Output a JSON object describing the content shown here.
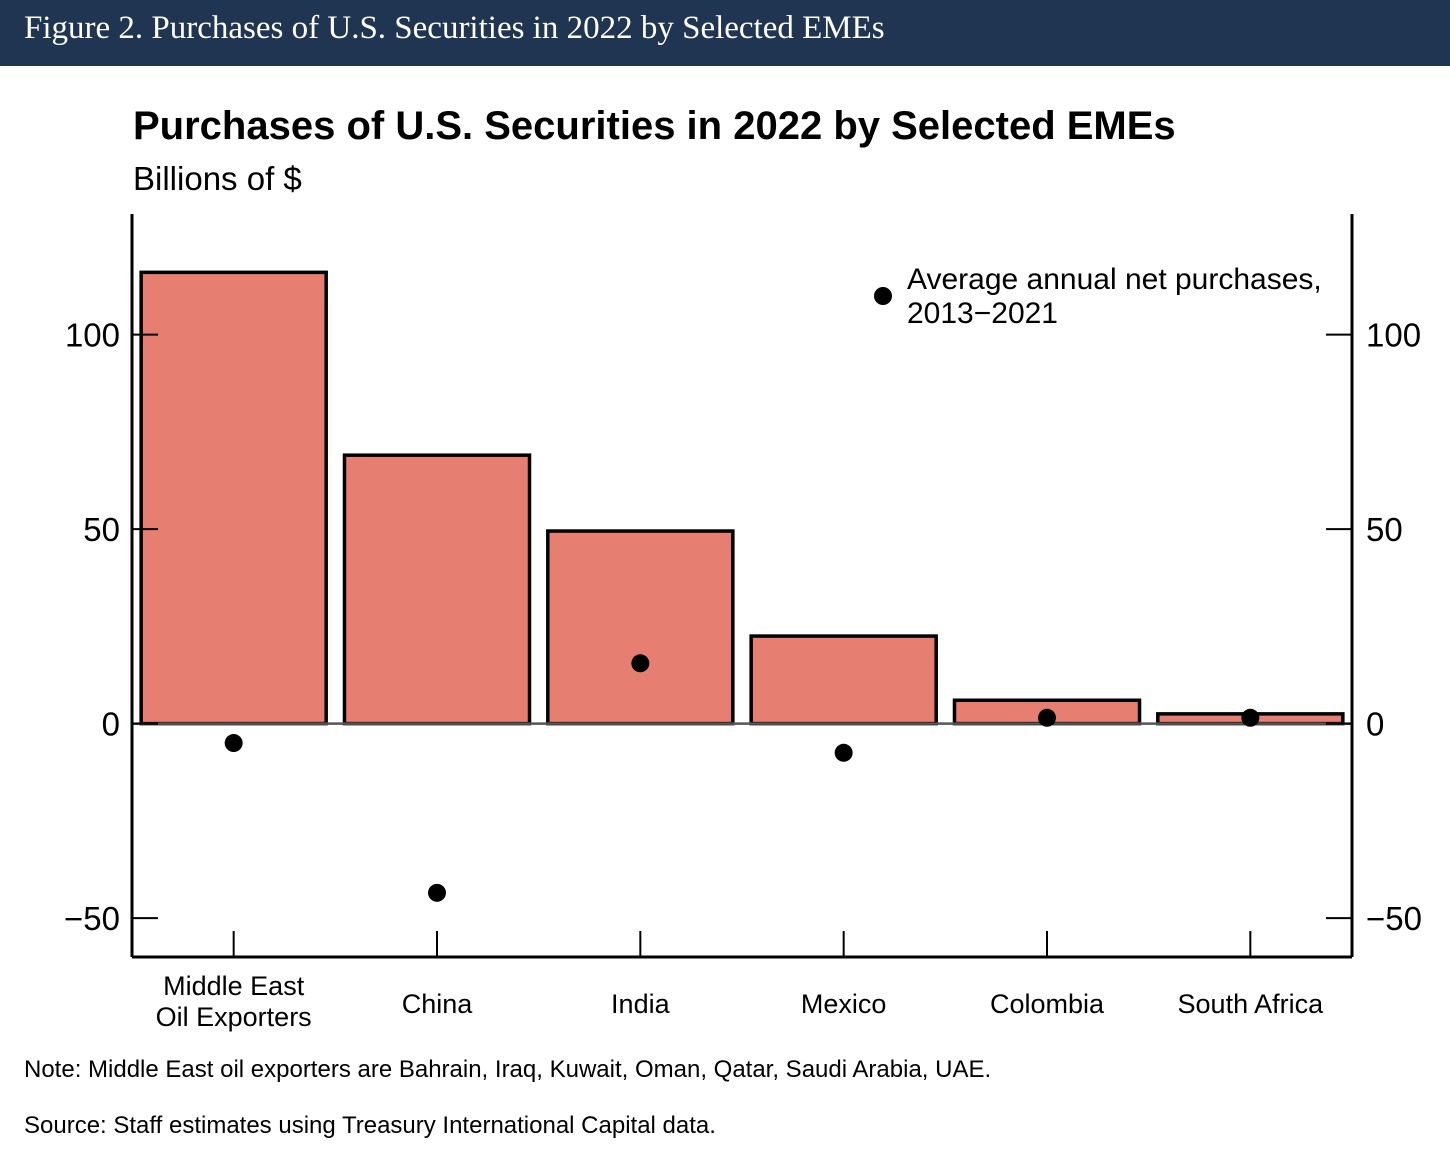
{
  "figure_header": "Figure 2. Purchases of U.S. Securities in 2022 by Selected EMEs",
  "note": "Note: Middle East oil exporters are Bahrain, Iraq, Kuwait, Oman, Qatar, Saudi Arabia, UAE.",
  "source": "Source: Staff estimates using Treasury International Capital data.",
  "colors": {
    "header_bg": "#1f3551",
    "bar_fill": "#e77e72",
    "dot": "#000000"
  },
  "chart_data": {
    "type": "bar",
    "title": "Purchases of U.S. Securities in 2022 by Selected EMEs",
    "subtitle": "Billions of $",
    "categories": [
      [
        "Middle East",
        "Oil Exporters"
      ],
      [
        "China"
      ],
      [
        "India"
      ],
      [
        "Mexico"
      ],
      [
        "Colombia"
      ],
      [
        "South Africa"
      ]
    ],
    "series": [
      {
        "values": [
          116,
          69,
          49.5,
          22.5,
          6,
          2.5
        ]
      },
      {
        "name": "Average annual net purchases, 2013−2021",
        "legend_lines": [
          "Average annual net purchases,",
          "2013−2021"
        ],
        "type": "scatter",
        "values": [
          -5,
          -43.5,
          15.5,
          -7.5,
          1.5,
          1.5
        ]
      }
    ],
    "ylim": [
      -60,
      131
    ],
    "yticks": [
      -50,
      0,
      50,
      100
    ],
    "ytick_labels": [
      "−50",
      "0",
      "50",
      "100"
    ],
    "legend_position": "top-right",
    "grid": false
  }
}
